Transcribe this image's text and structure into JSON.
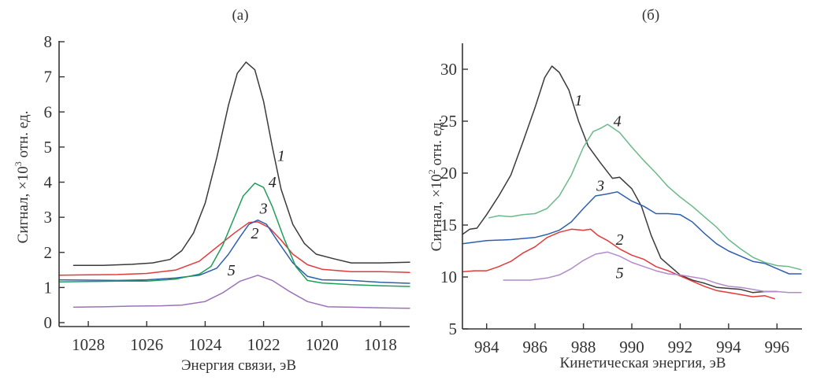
{
  "chart_data": [
    {
      "type": "line",
      "panel_label": "(a)",
      "xlabel": "Энергия связи, эВ",
      "ylabel_prefix": "Сигнал, ×10",
      "ylabel_exp": "3",
      "ylabel_suffix": " отн. ед.",
      "xlim": [
        1029,
        1017
      ],
      "ylim": [
        0,
        8
      ],
      "x_reversed": true,
      "xticks": [
        1028,
        1026,
        1024,
        1022,
        1020,
        1018
      ],
      "yticks": [
        0,
        1,
        2,
        3,
        4,
        5,
        6,
        7,
        8
      ],
      "grid": false,
      "series": [
        {
          "name": "1",
          "color": "#3a3a3a",
          "label_pos": [
            1021.4,
            4.6
          ],
          "points": [
            [
              1028.5,
              1.63
            ],
            [
              1027.5,
              1.63
            ],
            [
              1026.5,
              1.66
            ],
            [
              1025.8,
              1.7
            ],
            [
              1025.2,
              1.8
            ],
            [
              1024.8,
              2.05
            ],
            [
              1024.4,
              2.55
            ],
            [
              1024.0,
              3.4
            ],
            [
              1023.6,
              4.7
            ],
            [
              1023.2,
              6.2
            ],
            [
              1022.9,
              7.1
            ],
            [
              1022.6,
              7.42
            ],
            [
              1022.3,
              7.2
            ],
            [
              1022.0,
              6.3
            ],
            [
              1021.7,
              5.0
            ],
            [
              1021.4,
              3.8
            ],
            [
              1021.0,
              2.8
            ],
            [
              1020.6,
              2.25
            ],
            [
              1020.2,
              1.95
            ],
            [
              1019.6,
              1.82
            ],
            [
              1019.0,
              1.7
            ],
            [
              1018.0,
              1.7
            ],
            [
              1017.0,
              1.72
            ]
          ]
        },
        {
          "name": "2",
          "color": "#e23a3a",
          "label_pos": [
            1022.3,
            2.4
          ],
          "points": [
            [
              1029.0,
              1.35
            ],
            [
              1028.0,
              1.36
            ],
            [
              1027.0,
              1.37
            ],
            [
              1026.0,
              1.4
            ],
            [
              1025.0,
              1.5
            ],
            [
              1024.2,
              1.75
            ],
            [
              1023.6,
              2.15
            ],
            [
              1023.0,
              2.55
            ],
            [
              1022.5,
              2.85
            ],
            [
              1022.2,
              2.87
            ],
            [
              1021.8,
              2.7
            ],
            [
              1021.4,
              2.35
            ],
            [
              1021.0,
              1.95
            ],
            [
              1020.5,
              1.65
            ],
            [
              1020.0,
              1.52
            ],
            [
              1019.0,
              1.45
            ],
            [
              1018.0,
              1.45
            ],
            [
              1017.0,
              1.43
            ]
          ]
        },
        {
          "name": "3",
          "color": "#2e5fae",
          "label_pos": [
            1022.0,
            3.1
          ],
          "points": [
            [
              1029.0,
              1.22
            ],
            [
              1028.0,
              1.21
            ],
            [
              1027.0,
              1.2
            ],
            [
              1026.0,
              1.22
            ],
            [
              1025.0,
              1.27
            ],
            [
              1024.2,
              1.35
            ],
            [
              1023.6,
              1.55
            ],
            [
              1023.2,
              1.95
            ],
            [
              1022.8,
              2.45
            ],
            [
              1022.5,
              2.8
            ],
            [
              1022.2,
              2.92
            ],
            [
              1021.9,
              2.8
            ],
            [
              1021.5,
              2.3
            ],
            [
              1021.0,
              1.7
            ],
            [
              1020.5,
              1.32
            ],
            [
              1020.0,
              1.22
            ],
            [
              1019.0,
              1.2
            ],
            [
              1018.0,
              1.15
            ],
            [
              1017.0,
              1.12
            ]
          ]
        },
        {
          "name": "4",
          "color": "#1f9e5a",
          "label_pos": [
            1021.7,
            3.85
          ],
          "points": [
            [
              1029.0,
              1.16
            ],
            [
              1028.0,
              1.17
            ],
            [
              1027.0,
              1.18
            ],
            [
              1026.0,
              1.18
            ],
            [
              1025.0,
              1.24
            ],
            [
              1024.2,
              1.38
            ],
            [
              1023.8,
              1.6
            ],
            [
              1023.4,
              2.2
            ],
            [
              1023.0,
              3.0
            ],
            [
              1022.7,
              3.6
            ],
            [
              1022.3,
              3.97
            ],
            [
              1022.0,
              3.85
            ],
            [
              1021.7,
              3.3
            ],
            [
              1021.3,
              2.4
            ],
            [
              1020.9,
              1.6
            ],
            [
              1020.5,
              1.2
            ],
            [
              1020.0,
              1.13
            ],
            [
              1019.0,
              1.08
            ],
            [
              1018.0,
              1.05
            ],
            [
              1017.0,
              1.03
            ]
          ]
        },
        {
          "name": "5",
          "color": "#9b72b8",
          "label_pos": [
            1023.1,
            1.35
          ],
          "points": [
            [
              1028.5,
              0.44
            ],
            [
              1027.5,
              0.45
            ],
            [
              1026.5,
              0.47
            ],
            [
              1025.5,
              0.48
            ],
            [
              1024.8,
              0.5
            ],
            [
              1024.0,
              0.6
            ],
            [
              1023.4,
              0.85
            ],
            [
              1022.8,
              1.18
            ],
            [
              1022.2,
              1.35
            ],
            [
              1021.7,
              1.2
            ],
            [
              1021.1,
              0.88
            ],
            [
              1020.5,
              0.6
            ],
            [
              1019.8,
              0.45
            ],
            [
              1019.0,
              0.44
            ],
            [
              1018.0,
              0.42
            ],
            [
              1017.0,
              0.41
            ]
          ]
        }
      ]
    },
    {
      "type": "line",
      "panel_label": "(б)",
      "xlabel": "Кинетическая энергия, эВ",
      "ylabel_prefix": "Сигнал, ×10",
      "ylabel_exp": "2",
      "ylabel_suffix": " отн. ед.",
      "xlim": [
        983,
        997
      ],
      "ylim": [
        5,
        32.5
      ],
      "x_reversed": false,
      "xticks": [
        984,
        986,
        988,
        990,
        992,
        994,
        996
      ],
      "yticks": [
        5,
        10,
        15,
        20,
        25,
        30
      ],
      "grid": false,
      "series": [
        {
          "name": "1",
          "color": "#3a3a3a",
          "label_pos": [
            987.8,
            26.5
          ],
          "points": [
            [
              983.0,
              14.1
            ],
            [
              983.3,
              14.6
            ],
            [
              983.6,
              14.7
            ],
            [
              984.0,
              16.0
            ],
            [
              984.5,
              17.8
            ],
            [
              985.0,
              19.8
            ],
            [
              985.5,
              23.0
            ],
            [
              986.0,
              26.3
            ],
            [
              986.4,
              29.2
            ],
            [
              986.7,
              30.3
            ],
            [
              987.0,
              29.7
            ],
            [
              987.4,
              28.0
            ],
            [
              987.8,
              25.0
            ],
            [
              988.2,
              22.6
            ],
            [
              988.7,
              21.0
            ],
            [
              989.2,
              19.5
            ],
            [
              989.5,
              19.6
            ],
            [
              990.0,
              18.5
            ],
            [
              990.4,
              16.8
            ],
            [
              990.8,
              14.0
            ],
            [
              991.2,
              11.8
            ],
            [
              991.6,
              11.0
            ],
            [
              992.0,
              10.2
            ],
            [
              992.5,
              9.7
            ],
            [
              993.0,
              9.4
            ],
            [
              993.5,
              9.0
            ],
            [
              994.0,
              8.9
            ],
            [
              994.5,
              8.8
            ],
            [
              995.0,
              8.5
            ],
            [
              995.5,
              8.6
            ],
            [
              996.0,
              8.6
            ]
          ]
        },
        {
          "name": "2",
          "color": "#e23a3a",
          "label_pos": [
            989.5,
            13.1
          ],
          "points": [
            [
              983.0,
              10.5
            ],
            [
              983.5,
              10.6
            ],
            [
              984.0,
              10.6
            ],
            [
              984.5,
              11.0
            ],
            [
              985.0,
              11.5
            ],
            [
              985.5,
              12.3
            ],
            [
              986.0,
              12.9
            ],
            [
              986.5,
              13.8
            ],
            [
              987.0,
              14.3
            ],
            [
              987.5,
              14.6
            ],
            [
              988.0,
              14.5
            ],
            [
              988.3,
              14.6
            ],
            [
              988.6,
              14.0
            ],
            [
              989.0,
              13.5
            ],
            [
              989.5,
              12.7
            ],
            [
              990.0,
              12.1
            ],
            [
              990.5,
              11.7
            ],
            [
              991.0,
              11.0
            ],
            [
              991.5,
              10.6
            ],
            [
              992.0,
              10.1
            ],
            [
              992.5,
              9.6
            ],
            [
              993.0,
              9.1
            ],
            [
              993.5,
              8.7
            ],
            [
              994.0,
              8.5
            ],
            [
              994.5,
              8.3
            ],
            [
              995.0,
              8.1
            ],
            [
              995.5,
              8.2
            ],
            [
              995.9,
              7.9
            ]
          ]
        },
        {
          "name": "3",
          "color": "#2e5fae",
          "label_pos": [
            988.7,
            18.3
          ],
          "points": [
            [
              983.0,
              13.2
            ],
            [
              984.0,
              13.5
            ],
            [
              985.0,
              13.6
            ],
            [
              986.0,
              13.8
            ],
            [
              986.5,
              14.1
            ],
            [
              987.0,
              14.5
            ],
            [
              987.5,
              15.3
            ],
            [
              988.0,
              16.6
            ],
            [
              988.5,
              17.8
            ],
            [
              989.0,
              18.0
            ],
            [
              989.4,
              18.2
            ],
            [
              990.0,
              17.3
            ],
            [
              990.5,
              16.8
            ],
            [
              991.0,
              16.1
            ],
            [
              991.5,
              16.1
            ],
            [
              992.0,
              16.0
            ],
            [
              992.5,
              15.3
            ],
            [
              993.0,
              14.2
            ],
            [
              993.5,
              13.2
            ],
            [
              994.0,
              12.5
            ],
            [
              994.5,
              12.0
            ],
            [
              995.0,
              11.5
            ],
            [
              995.5,
              11.3
            ],
            [
              996.0,
              10.8
            ],
            [
              996.5,
              10.3
            ],
            [
              997.0,
              10.3
            ]
          ]
        },
        {
          "name": "4",
          "color": "#6bb98a",
          "label_pos": [
            989.4,
            24.5
          ],
          "points": [
            [
              984.1,
              15.7
            ],
            [
              984.5,
              15.9
            ],
            [
              985.0,
              15.8
            ],
            [
              985.5,
              16.0
            ],
            [
              986.0,
              16.1
            ],
            [
              986.5,
              16.6
            ],
            [
              987.0,
              17.8
            ],
            [
              987.5,
              19.8
            ],
            [
              988.0,
              22.5
            ],
            [
              988.4,
              24.0
            ],
            [
              988.7,
              24.3
            ],
            [
              989.0,
              24.7
            ],
            [
              989.5,
              23.9
            ],
            [
              990.0,
              22.5
            ],
            [
              990.5,
              21.2
            ],
            [
              991.0,
              20.0
            ],
            [
              991.5,
              18.7
            ],
            [
              992.0,
              17.7
            ],
            [
              992.5,
              16.8
            ],
            [
              993.0,
              15.8
            ],
            [
              993.5,
              14.8
            ],
            [
              994.0,
              13.6
            ],
            [
              994.5,
              12.7
            ],
            [
              995.0,
              11.9
            ],
            [
              995.5,
              11.4
            ],
            [
              996.0,
              11.1
            ],
            [
              996.5,
              11.0
            ],
            [
              997.0,
              10.7
            ]
          ]
        },
        {
          "name": "5",
          "color": "#b38bcc",
          "label_pos": [
            989.5,
            9.9
          ],
          "points": [
            [
              984.7,
              9.7
            ],
            [
              985.2,
              9.7
            ],
            [
              985.8,
              9.7
            ],
            [
              986.5,
              9.9
            ],
            [
              987.0,
              10.2
            ],
            [
              987.5,
              10.8
            ],
            [
              988.0,
              11.6
            ],
            [
              988.5,
              12.2
            ],
            [
              989.0,
              12.4
            ],
            [
              989.5,
              12.0
            ],
            [
              990.0,
              11.4
            ],
            [
              990.5,
              11.0
            ],
            [
              991.0,
              10.6
            ],
            [
              991.5,
              10.3
            ],
            [
              992.0,
              10.2
            ],
            [
              992.5,
              10.0
            ],
            [
              993.0,
              9.8
            ],
            [
              993.5,
              9.4
            ],
            [
              994.0,
              9.1
            ],
            [
              994.5,
              9.0
            ],
            [
              995.0,
              8.8
            ],
            [
              995.5,
              8.6
            ],
            [
              996.0,
              8.6
            ],
            [
              996.5,
              8.5
            ],
            [
              997.0,
              8.5
            ]
          ]
        }
      ]
    }
  ]
}
